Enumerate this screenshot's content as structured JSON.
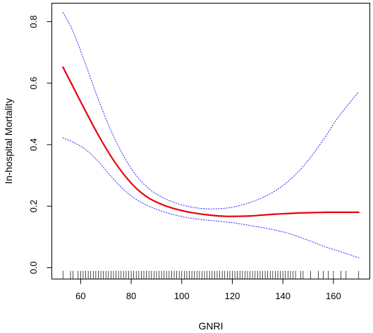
{
  "chart_data": {
    "type": "line",
    "title": "",
    "xlabel": "GNRI",
    "ylabel": "In-hospital Mortality",
    "xlim": [
      48.6,
      174.4
    ],
    "ylim": [
      -0.037,
      0.86
    ],
    "x_ticks": [
      60,
      80,
      100,
      120,
      140,
      160
    ],
    "x_tick_labels": [
      "60",
      "80",
      "100",
      "120",
      "140",
      "160"
    ],
    "y_ticks": [
      0.0,
      0.2,
      0.4,
      0.6,
      0.8
    ],
    "y_tick_labels": [
      "0.0",
      "0.2",
      "0.4",
      "0.6",
      "0.8"
    ],
    "grid": false,
    "legend": "none",
    "series": [
      {
        "role": "estimate",
        "color": "#e8000b",
        "style": "solid",
        "x": [
          53,
          57,
          62,
          67,
          72,
          77,
          82,
          87,
          92,
          97,
          102,
          107,
          112,
          117,
          122,
          127,
          132,
          137,
          142,
          147,
          152,
          157,
          162,
          170
        ],
        "y": [
          0.652,
          0.588,
          0.508,
          0.431,
          0.362,
          0.304,
          0.258,
          0.226,
          0.206,
          0.192,
          0.182,
          0.175,
          0.17,
          0.167,
          0.167,
          0.168,
          0.171,
          0.174,
          0.176,
          0.178,
          0.179,
          0.18,
          0.18,
          0.18
        ]
      },
      {
        "role": "upper-ci",
        "color": "#3b3bff",
        "style": "dotted",
        "x": [
          53,
          57,
          62,
          67,
          72,
          77,
          82,
          87,
          92,
          97,
          102,
          107,
          112,
          117,
          122,
          127,
          132,
          137,
          142,
          147,
          152,
          157,
          162,
          170
        ],
        "y": [
          0.83,
          0.768,
          0.66,
          0.547,
          0.446,
          0.363,
          0.3,
          0.257,
          0.23,
          0.212,
          0.2,
          0.193,
          0.191,
          0.193,
          0.2,
          0.212,
          0.228,
          0.25,
          0.28,
          0.32,
          0.37,
          0.428,
          0.49,
          0.572
        ]
      },
      {
        "role": "lower-ci",
        "color": "#3b3bff",
        "style": "dotted",
        "x": [
          53,
          57,
          62,
          67,
          72,
          77,
          82,
          87,
          92,
          97,
          102,
          107,
          112,
          117,
          122,
          127,
          132,
          137,
          142,
          147,
          152,
          157,
          162,
          170
        ],
        "y": [
          0.422,
          0.408,
          0.384,
          0.345,
          0.297,
          0.254,
          0.222,
          0.2,
          0.184,
          0.172,
          0.163,
          0.157,
          0.153,
          0.149,
          0.144,
          0.137,
          0.13,
          0.122,
          0.112,
          0.098,
          0.083,
          0.067,
          0.054,
          0.032
        ]
      }
    ],
    "rug_x": [
      53,
      56,
      57,
      59,
      60,
      61,
      62,
      63,
      64,
      65,
      66,
      67,
      68,
      69,
      70,
      71,
      72,
      73,
      74,
      75,
      76,
      77,
      78,
      79,
      80,
      81,
      82,
      83,
      84,
      85,
      86,
      87,
      88,
      89,
      90,
      91,
      92,
      93,
      94,
      95,
      96,
      97,
      98,
      99,
      100,
      101,
      102,
      103,
      104,
      105,
      106,
      107,
      108,
      109,
      110,
      111,
      112,
      113,
      114,
      115,
      116,
      117,
      118,
      119,
      120,
      121,
      122,
      123,
      124,
      125,
      126,
      127,
      128,
      129,
      130,
      131,
      132,
      133,
      134,
      135,
      136,
      137,
      138,
      139,
      140,
      141,
      142,
      143,
      144,
      145,
      147,
      148,
      151,
      154,
      156,
      158,
      160,
      163,
      165,
      170
    ]
  }
}
